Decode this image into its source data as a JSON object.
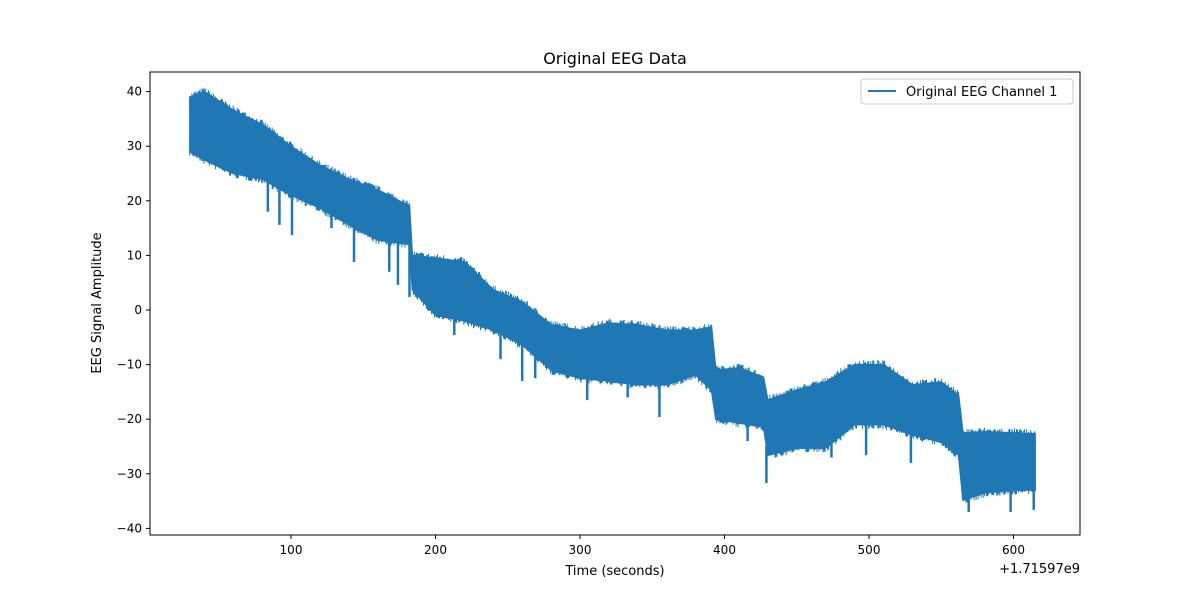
{
  "chart_data": {
    "type": "line",
    "title": "Original EEG Data",
    "xlabel": "Time (seconds)",
    "ylabel": "EEG Signal Amplitude",
    "x_offset_text": "+1.71597e9",
    "xlim": [
      -2,
      622
    ],
    "ylim": [
      -41,
      44
    ],
    "xticks": [
      100,
      200,
      300,
      400,
      500,
      600
    ],
    "yticks": [
      -40,
      -30,
      -20,
      -10,
      0,
      10,
      20,
      30,
      40
    ],
    "grid": false,
    "legend_position": "top-right",
    "series": [
      {
        "name": "Original EEG Channel 1",
        "color": "#1f77b4",
        "envelope": [
          {
            "x": 30,
            "upper": 39,
            "lower": 29
          },
          {
            "x": 40,
            "upper": 40,
            "lower": 27.5
          },
          {
            "x": 60,
            "upper": 36.6,
            "lower": 25
          },
          {
            "x": 80,
            "upper": 34,
            "lower": 24
          },
          {
            "x": 100,
            "upper": 30,
            "lower": 21
          },
          {
            "x": 120,
            "upper": 26.5,
            "lower": 18.7
          },
          {
            "x": 140,
            "upper": 24,
            "lower": 15.6
          },
          {
            "x": 160,
            "upper": 22,
            "lower": 12.8
          },
          {
            "x": 182,
            "upper": 19,
            "lower": 12
          },
          {
            "x": 184,
            "upper": 10,
            "lower": 3.7
          },
          {
            "x": 200,
            "upper": 9.5,
            "lower": -1
          },
          {
            "x": 220,
            "upper": 8.8,
            "lower": -2
          },
          {
            "x": 240,
            "upper": 3.7,
            "lower": -3.7
          },
          {
            "x": 260,
            "upper": 1.5,
            "lower": -6.4
          },
          {
            "x": 280,
            "upper": -2.7,
            "lower": -11
          },
          {
            "x": 300,
            "upper": -3.7,
            "lower": -12.5
          },
          {
            "x": 320,
            "upper": -2.4,
            "lower": -13
          },
          {
            "x": 340,
            "upper": -2.7,
            "lower": -13.7
          },
          {
            "x": 360,
            "upper": -3.7,
            "lower": -13.7
          },
          {
            "x": 380,
            "upper": -3.7,
            "lower": -11.9
          },
          {
            "x": 391,
            "upper": -3.1,
            "lower": -14.7
          },
          {
            "x": 394,
            "upper": -11,
            "lower": -20
          },
          {
            "x": 410,
            "upper": -10.6,
            "lower": -20.7
          },
          {
            "x": 427,
            "upper": -12.3,
            "lower": -21.4
          },
          {
            "x": 430,
            "upper": -16.5,
            "lower": -26.6
          },
          {
            "x": 450,
            "upper": -14.7,
            "lower": -25.3
          },
          {
            "x": 470,
            "upper": -13.2,
            "lower": -25.3
          },
          {
            "x": 490,
            "upper": -10,
            "lower": -21
          },
          {
            "x": 510,
            "upper": -10,
            "lower": -21
          },
          {
            "x": 530,
            "upper": -13.7,
            "lower": -22.9
          },
          {
            "x": 550,
            "upper": -13.2,
            "lower": -24.2
          },
          {
            "x": 562,
            "upper": -15.6,
            "lower": -26.6
          },
          {
            "x": 565,
            "upper": -22.5,
            "lower": -34.8
          },
          {
            "x": 580,
            "upper": -22.3,
            "lower": -33.5
          },
          {
            "x": 600,
            "upper": -22.5,
            "lower": -33
          },
          {
            "x": 615,
            "upper": -22.7,
            "lower": -33
          }
        ],
        "spikes": [
          [
            84,
            18
          ],
          [
            92,
            15.6
          ],
          [
            100.7,
            13.7
          ],
          [
            128,
            15
          ],
          [
            143.6,
            8.8
          ],
          [
            168,
            7
          ],
          [
            174,
            4.6
          ],
          [
            182,
            2.4
          ],
          [
            213,
            -4.6
          ],
          [
            245,
            -9
          ],
          [
            260,
            -13
          ],
          [
            269,
            -12.5
          ],
          [
            305,
            -16.5
          ],
          [
            333,
            -16
          ],
          [
            355,
            -19.6
          ],
          [
            416,
            -24
          ],
          [
            429,
            -31.7
          ],
          [
            474,
            -27
          ],
          [
            498,
            -26.6
          ],
          [
            529,
            -28
          ],
          [
            569,
            -37
          ],
          [
            598,
            -37
          ],
          [
            614,
            -36.6
          ]
        ]
      }
    ]
  }
}
